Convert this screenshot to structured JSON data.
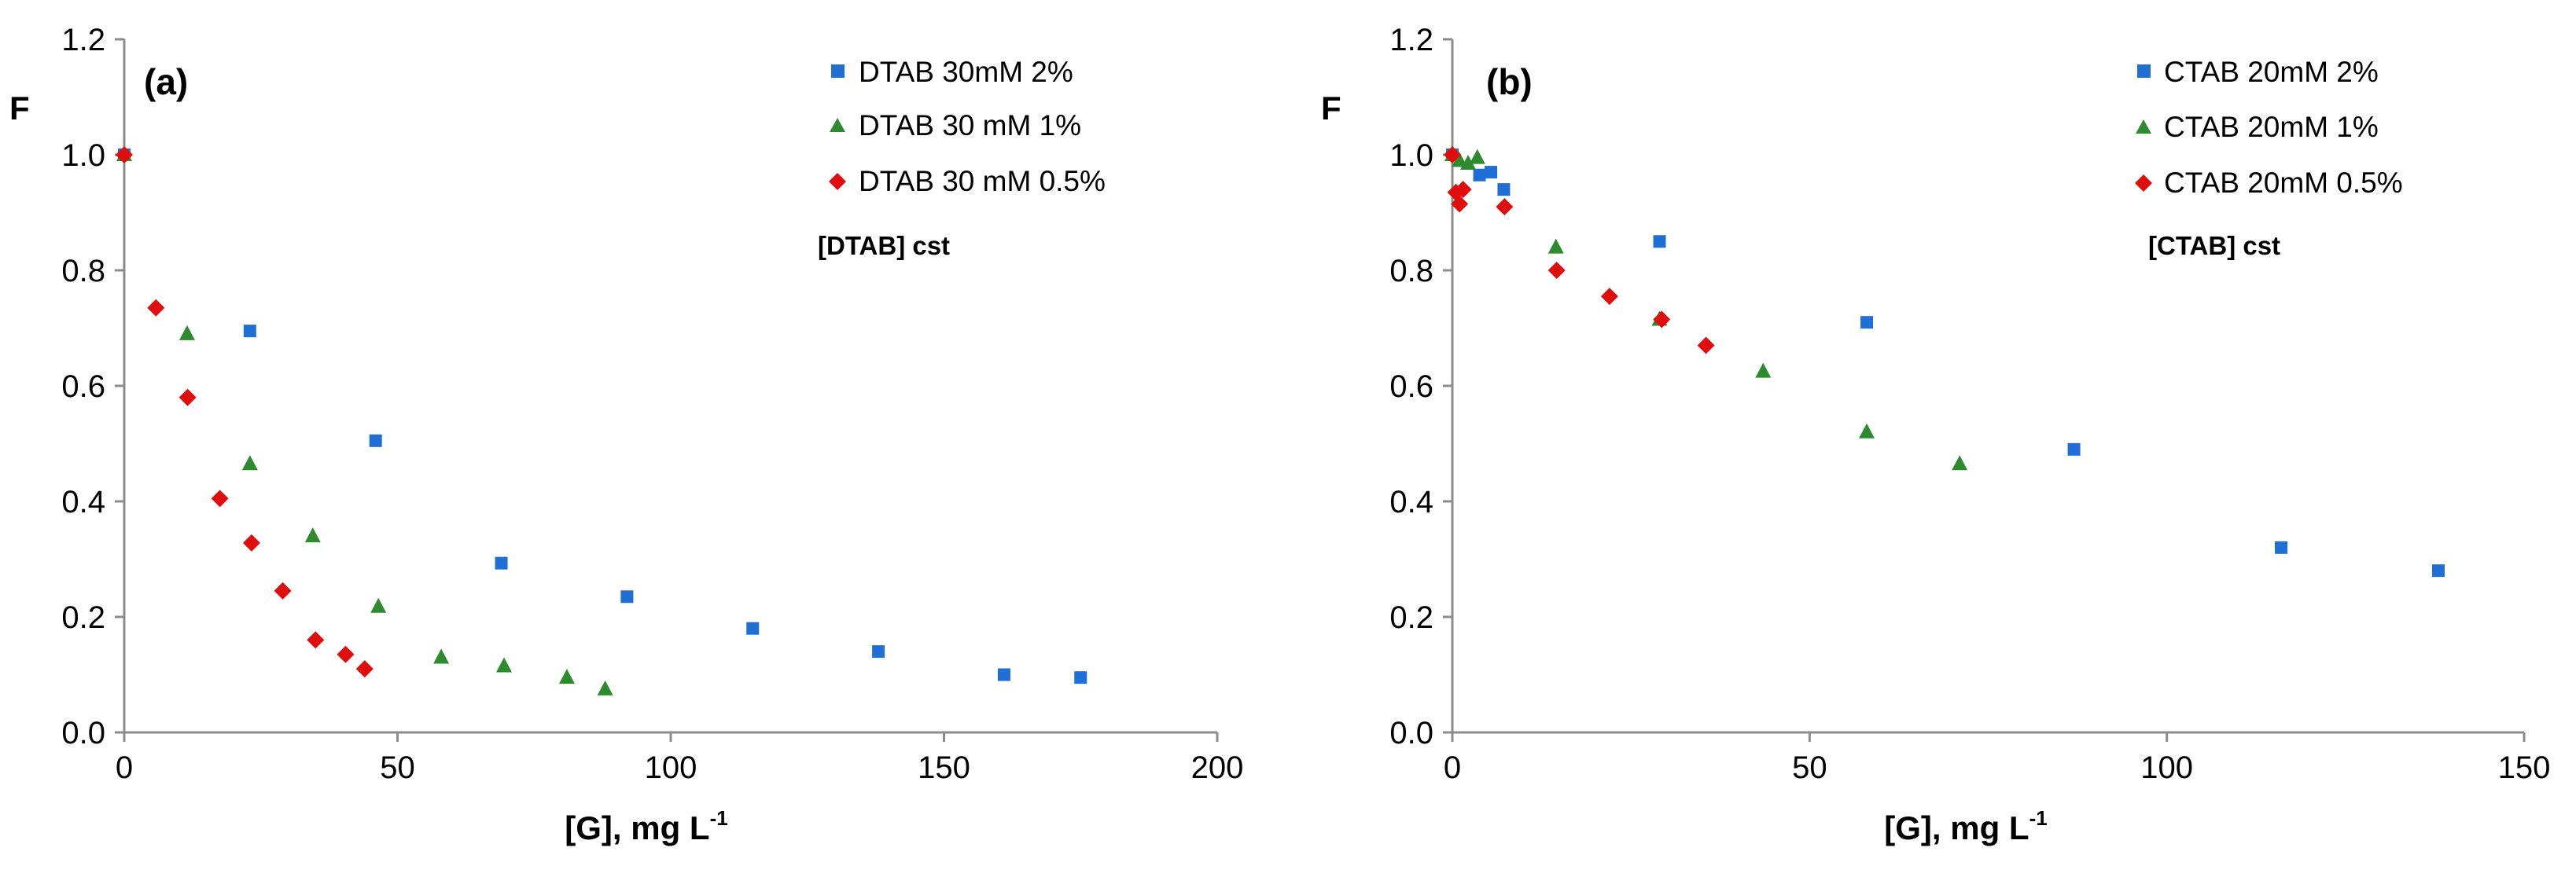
{
  "colors": {
    "blue": "#1f6fd6",
    "green": "#2e8a2e",
    "red": "#e00d0d",
    "axis": "#8c8c8c",
    "text": "#000000"
  },
  "chart_data": [
    {
      "type": "scatter",
      "panel_label": "(a)",
      "ylabel": "F",
      "xlabel_main": "[G], mg L",
      "xlabel_sup": "-1",
      "xlim": [
        0,
        200
      ],
      "ylim": [
        0,
        1.2
      ],
      "xticks": [
        0,
        50,
        100,
        150,
        200
      ],
      "xtick_labels": [
        "0",
        "50",
        "100",
        "150",
        "200"
      ],
      "yticks": [
        0,
        0.2,
        0.4,
        0.6,
        0.8,
        1.0,
        1.2
      ],
      "ytick_labels": [
        "0.0",
        "0.2",
        "0.4",
        "0.6",
        "0.8",
        "1.0",
        "1.2"
      ],
      "grid": false,
      "legend_position": "top-right",
      "annotation": "[DTAB] cst",
      "series": [
        {
          "name": "DTAB 30mM 2%",
          "marker": "square",
          "color": "#1f6fd6",
          "x": [
            0,
            23,
            46,
            69,
            92,
            115,
            138,
            161,
            175
          ],
          "y": [
            1.0,
            0.695,
            0.505,
            0.293,
            0.235,
            0.18,
            0.14,
            0.1,
            0.095
          ]
        },
        {
          "name": "DTAB 30 mM 1%",
          "marker": "triangle",
          "color": "#2e8a2e",
          "x": [
            0,
            11.5,
            23,
            34.5,
            46.5,
            58,
            69.5,
            81,
            88
          ],
          "y": [
            1.0,
            0.69,
            0.465,
            0.34,
            0.218,
            0.13,
            0.115,
            0.095,
            0.075
          ]
        },
        {
          "name": "DTAB 30 mM 0.5%",
          "marker": "diamond",
          "color": "#e00d0d",
          "x": [
            0,
            5.8,
            11.6,
            17.5,
            23.3,
            29,
            35,
            40.5,
            44
          ],
          "y": [
            1.0,
            0.735,
            0.58,
            0.405,
            0.328,
            0.245,
            0.16,
            0.135,
            0.11
          ]
        }
      ]
    },
    {
      "type": "scatter",
      "panel_label": "(b)",
      "ylabel": "F",
      "xlabel_main": "[G], mg L",
      "xlabel_sup": "-1",
      "xlim": [
        0,
        150
      ],
      "ylim": [
        0,
        1.2
      ],
      "xticks": [
        0,
        50,
        100,
        150
      ],
      "xtick_labels": [
        "0",
        "50",
        "100",
        "150"
      ],
      "yticks": [
        0,
        0.2,
        0.4,
        0.6,
        0.8,
        1.0,
        1.2
      ],
      "ytick_labels": [
        "0.0",
        "0.2",
        "0.4",
        "0.6",
        "0.8",
        "1.0",
        "1.2"
      ],
      "grid": false,
      "legend_position": "top-right",
      "annotation": "[CTAB] cst",
      "series": [
        {
          "name": "CTAB 20mM 2%",
          "marker": "square",
          "color": "#1f6fd6",
          "x": [
            0,
            3.8,
            5.4,
            7.2,
            29,
            58,
            87,
            116,
            138
          ],
          "y": [
            1.0,
            0.965,
            0.97,
            0.94,
            0.85,
            0.71,
            0.49,
            0.32,
            0.28
          ]
        },
        {
          "name": "CTAB 20mM  1%",
          "marker": "triangle",
          "color": "#2e8a2e",
          "x": [
            0,
            1,
            2.2,
            3.5,
            14.5,
            29,
            43.5,
            58,
            71
          ],
          "y": [
            1.0,
            0.99,
            0.985,
            0.995,
            0.84,
            0.715,
            0.625,
            0.52,
            0.465
          ]
        },
        {
          "name": "CTAB 20mM  0.5%",
          "marker": "diamond",
          "color": "#e00d0d",
          "x": [
            0,
            0.5,
            1,
            1.5,
            7.3,
            14.6,
            22,
            29.3,
            35.5
          ],
          "y": [
            1.0,
            0.935,
            0.915,
            0.94,
            0.91,
            0.8,
            0.755,
            0.715,
            0.67
          ]
        }
      ]
    }
  ]
}
